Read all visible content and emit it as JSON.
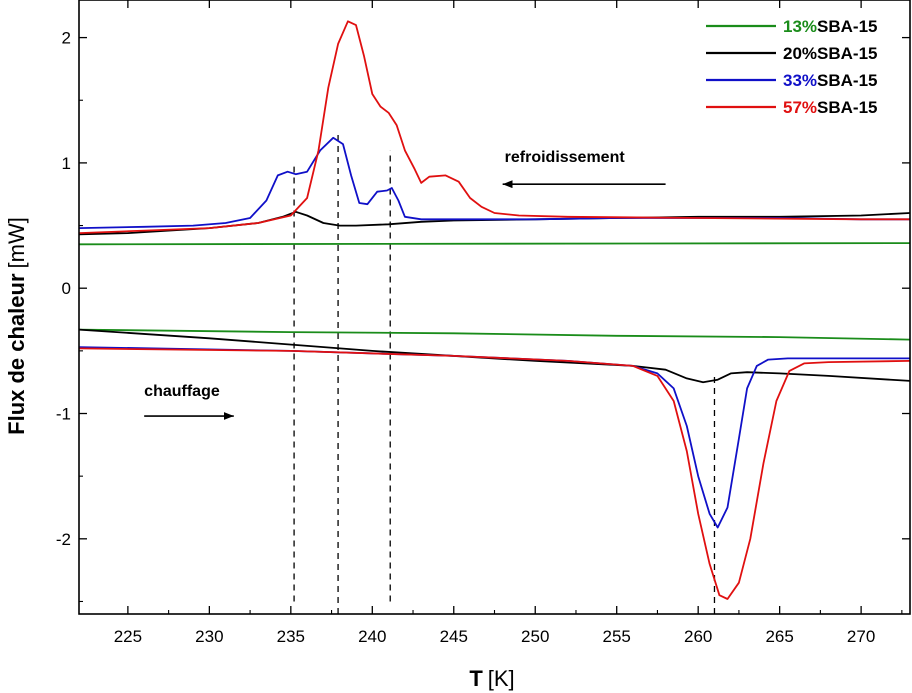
{
  "chart_data": {
    "type": "line",
    "xlabel": "T [K]",
    "xlabel_bold": "T",
    "xlabel_unit": "[K]",
    "ylabel": "Flux de chaleur [mW]",
    "ylabel_bold": "Flux de chaleur",
    "ylabel_unit": "[mW]",
    "xlim": [
      222,
      273
    ],
    "ylim": [
      -2.6,
      2.3
    ],
    "x_ticks": [
      225,
      230,
      235,
      240,
      245,
      250,
      255,
      260,
      265,
      270
    ],
    "y_ticks": [
      -2,
      -1,
      0,
      1,
      2
    ],
    "grid": false,
    "legend_position": "top-right",
    "legend": [
      {
        "percent": "13%",
        "rest": "SBA-15",
        "color": "#1a8c1a"
      },
      {
        "percent": "20%",
        "rest": "SBA-15",
        "color": "#000000"
      },
      {
        "percent": "33%",
        "rest": "SBA-15",
        "color": "#1010c8"
      },
      {
        "percent": "57%",
        "rest": "SBA-15",
        "color": "#e01010"
      }
    ],
    "annotations": {
      "cooling": {
        "text": "refroidissement",
        "arrow_from": 258,
        "arrow_to": 248,
        "y": 0.83
      },
      "heating": {
        "text": "chauffage",
        "arrow_from": 226,
        "arrow_to": 231.5,
        "y": -1.02
      }
    },
    "dashed_lines": [
      {
        "x": 235.2,
        "y_from": -2.5,
        "y_to": 0.97
      },
      {
        "x": 237.9,
        "y_from": -2.6,
        "y_to": 1.25
      },
      {
        "x": 241.1,
        "y_from": -2.5,
        "y_to": 1.1
      },
      {
        "x": 261.0,
        "y_from": -2.6,
        "y_to": -0.7
      }
    ],
    "series": [
      {
        "color": "#1a8c1a",
        "points": [
          [
            222,
            0.35
          ],
          [
            273,
            0.36
          ]
        ]
      },
      {
        "color": "#000000",
        "points": [
          [
            222,
            0.43
          ],
          [
            225,
            0.44
          ],
          [
            230,
            0.48
          ],
          [
            233,
            0.52
          ],
          [
            234.5,
            0.57
          ],
          [
            235.3,
            0.61
          ],
          [
            236,
            0.58
          ],
          [
            237,
            0.52
          ],
          [
            238,
            0.5
          ],
          [
            239,
            0.5
          ],
          [
            241,
            0.51
          ],
          [
            243,
            0.53
          ],
          [
            245,
            0.54
          ],
          [
            250,
            0.55
          ],
          [
            255,
            0.56
          ],
          [
            260,
            0.57
          ],
          [
            265,
            0.57
          ],
          [
            270,
            0.58
          ],
          [
            273,
            0.6
          ]
        ]
      },
      {
        "color": "#1010c8",
        "points": [
          [
            222,
            0.48
          ],
          [
            226,
            0.49
          ],
          [
            229,
            0.5
          ],
          [
            231,
            0.52
          ],
          [
            232.5,
            0.56
          ],
          [
            233.5,
            0.7
          ],
          [
            234.2,
            0.9
          ],
          [
            234.8,
            0.93
          ],
          [
            235.3,
            0.91
          ],
          [
            236,
            0.93
          ],
          [
            236.8,
            1.1
          ],
          [
            237.6,
            1.2
          ],
          [
            238.2,
            1.15
          ],
          [
            238.7,
            0.9
          ],
          [
            239.2,
            0.68
          ],
          [
            239.7,
            0.67
          ],
          [
            240.3,
            0.77
          ],
          [
            240.9,
            0.78
          ],
          [
            241.2,
            0.8
          ],
          [
            241.6,
            0.7
          ],
          [
            242,
            0.57
          ],
          [
            243,
            0.55
          ],
          [
            245,
            0.55
          ],
          [
            250,
            0.55
          ],
          [
            255,
            0.56
          ],
          [
            260,
            0.56
          ],
          [
            265,
            0.56
          ],
          [
            270,
            0.55
          ],
          [
            273,
            0.55
          ]
        ]
      },
      {
        "color": "#e01010",
        "points": [
          [
            222,
            0.44
          ],
          [
            226,
            0.46
          ],
          [
            230,
            0.48
          ],
          [
            233,
            0.52
          ],
          [
            235,
            0.58
          ],
          [
            236,
            0.72
          ],
          [
            236.7,
            1.1
          ],
          [
            237.3,
            1.6
          ],
          [
            237.9,
            1.95
          ],
          [
            238.5,
            2.13
          ],
          [
            239,
            2.1
          ],
          [
            239.5,
            1.85
          ],
          [
            240,
            1.55
          ],
          [
            240.5,
            1.45
          ],
          [
            241,
            1.4
          ],
          [
            241.5,
            1.3
          ],
          [
            242,
            1.1
          ],
          [
            242.6,
            0.95
          ],
          [
            243,
            0.84
          ],
          [
            243.5,
            0.89
          ],
          [
            244.5,
            0.9
          ],
          [
            245.3,
            0.85
          ],
          [
            246,
            0.72
          ],
          [
            246.7,
            0.65
          ],
          [
            247.5,
            0.6
          ],
          [
            249,
            0.58
          ],
          [
            252,
            0.57
          ],
          [
            260,
            0.56
          ],
          [
            270,
            0.55
          ],
          [
            273,
            0.55
          ]
        ]
      },
      {
        "color": "#1a8c1a",
        "points": [
          [
            222,
            -0.33
          ],
          [
            235,
            -0.35
          ],
          [
            245,
            -0.36
          ],
          [
            255,
            -0.38
          ],
          [
            265,
            -0.39
          ],
          [
            273,
            -0.41
          ]
        ]
      },
      {
        "color": "#000000",
        "points": [
          [
            222,
            -0.33
          ],
          [
            230,
            -0.4
          ],
          [
            240,
            -0.5
          ],
          [
            250,
            -0.58
          ],
          [
            256,
            -0.62
          ],
          [
            258,
            -0.65
          ],
          [
            259.3,
            -0.72
          ],
          [
            260.3,
            -0.75
          ],
          [
            261.2,
            -0.73
          ],
          [
            262,
            -0.68
          ],
          [
            263,
            -0.67
          ],
          [
            265,
            -0.68
          ],
          [
            268,
            -0.7
          ],
          [
            273,
            -0.74
          ]
        ]
      },
      {
        "color": "#1010c8",
        "points": [
          [
            222,
            -0.47
          ],
          [
            235,
            -0.5
          ],
          [
            245,
            -0.54
          ],
          [
            252,
            -0.58
          ],
          [
            256,
            -0.62
          ],
          [
            257.5,
            -0.68
          ],
          [
            258.5,
            -0.8
          ],
          [
            259.3,
            -1.1
          ],
          [
            260,
            -1.5
          ],
          [
            260.7,
            -1.8
          ],
          [
            261.2,
            -1.91
          ],
          [
            261.8,
            -1.75
          ],
          [
            262.5,
            -1.2
          ],
          [
            263,
            -0.8
          ],
          [
            263.6,
            -0.62
          ],
          [
            264.3,
            -0.57
          ],
          [
            265.5,
            -0.56
          ],
          [
            273,
            -0.56
          ]
        ]
      },
      {
        "color": "#e01010",
        "points": [
          [
            222,
            -0.48
          ],
          [
            235,
            -0.5
          ],
          [
            245,
            -0.54
          ],
          [
            252,
            -0.58
          ],
          [
            256,
            -0.62
          ],
          [
            257.5,
            -0.7
          ],
          [
            258.5,
            -0.9
          ],
          [
            259.3,
            -1.3
          ],
          [
            260,
            -1.8
          ],
          [
            260.7,
            -2.2
          ],
          [
            261.3,
            -2.45
          ],
          [
            261.8,
            -2.48
          ],
          [
            262.5,
            -2.35
          ],
          [
            263.2,
            -2
          ],
          [
            264,
            -1.4
          ],
          [
            264.8,
            -0.9
          ],
          [
            265.6,
            -0.66
          ],
          [
            266.5,
            -0.6
          ],
          [
            268,
            -0.59
          ],
          [
            273,
            -0.58
          ]
        ]
      }
    ]
  }
}
